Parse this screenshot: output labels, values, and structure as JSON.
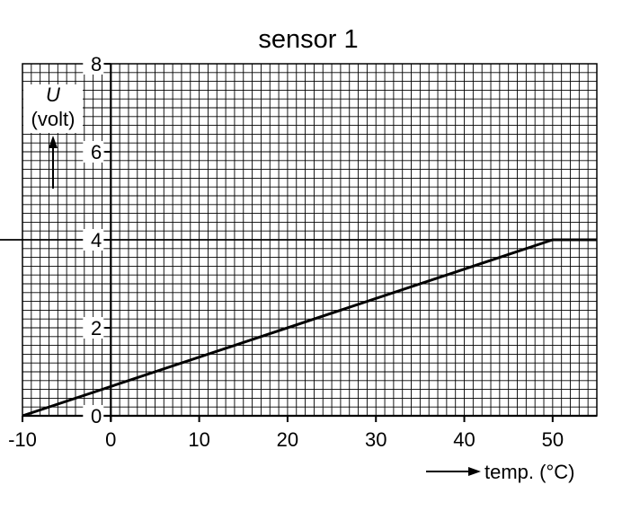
{
  "chart_data": {
    "type": "line",
    "title": "sensor 1",
    "ylabel": "U",
    "ylabel_unit": "(volt)",
    "xlabel": "temp. (°C)",
    "xlim": [
      -10,
      55
    ],
    "ylim": [
      0,
      8
    ],
    "x_ticks": [
      -10,
      0,
      10,
      20,
      30,
      40,
      50
    ],
    "y_ticks": [
      0,
      2,
      4,
      6,
      8
    ],
    "x_minor_step": 1,
    "y_minor_step": 0.2,
    "grid": true,
    "series": [
      {
        "points": [
          [
            -10,
            0
          ],
          [
            50,
            4
          ],
          [
            55,
            4
          ]
        ]
      }
    ]
  }
}
